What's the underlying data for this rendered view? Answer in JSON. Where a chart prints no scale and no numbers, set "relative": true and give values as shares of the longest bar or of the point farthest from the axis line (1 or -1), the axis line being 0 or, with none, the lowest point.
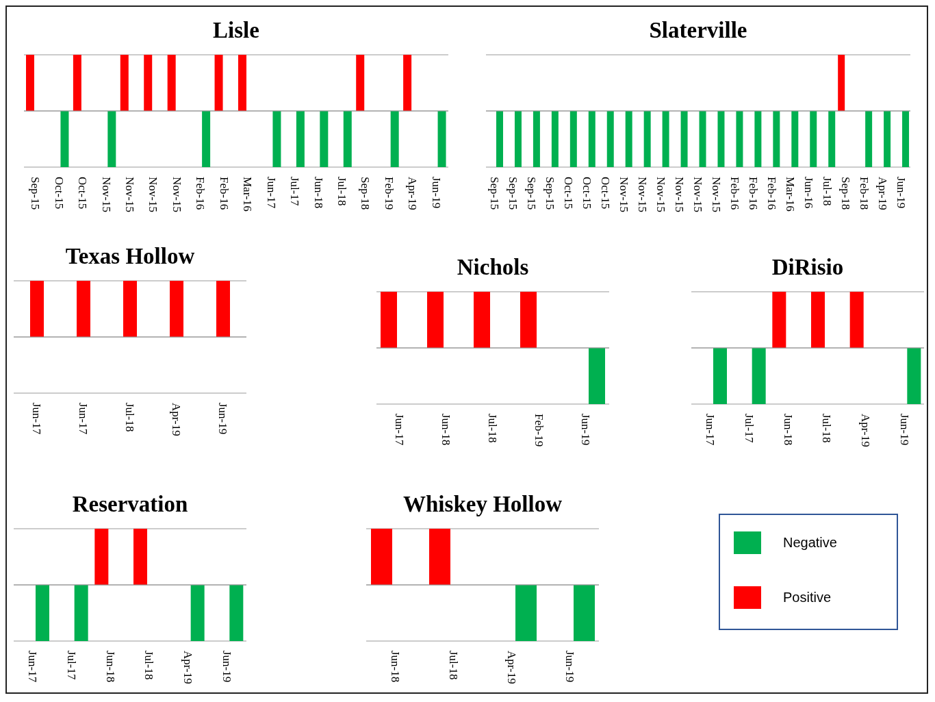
{
  "chart_data": [
    {
      "type": "bar",
      "title": "Lisle",
      "relative": true,
      "grid": "y",
      "categories": [
        "Sep-15",
        "Oct-15",
        "Oct-15",
        "Nov-15",
        "Nov-15",
        "Nov-15",
        "Nov-15",
        "Feb-16",
        "Feb-16",
        "Mar-16",
        "Jun-17",
        "Jul-17",
        "Jun-18",
        "Jul-18",
        "Sep-18",
        "Feb-19",
        "Apr-19",
        "Jun-19"
      ],
      "series": [
        {
          "color": "#ff0000",
          "values": [
            1,
            null,
            1,
            null,
            1,
            1,
            1,
            null,
            1,
            1,
            null,
            null,
            null,
            null,
            1,
            null,
            1,
            null
          ]
        },
        {
          "color": "#00b050",
          "values": [
            null,
            -1,
            null,
            -1,
            null,
            null,
            null,
            -1,
            null,
            null,
            -1,
            -1,
            -1,
            -1,
            null,
            -1,
            null,
            -1
          ]
        }
      ]
    },
    {
      "type": "bar",
      "title": "Slaterville",
      "relative": true,
      "grid": "y",
      "categories": [
        "Sep-15",
        "Sep-15",
        "Sep-15",
        "Sep-15",
        "Oct-15",
        "Oct-15",
        "Oct-15",
        "Nov-15",
        "Nov-15",
        "Nov-15",
        "Nov-15",
        "Nov-15",
        "Nov-15",
        "Feb-16",
        "Feb-16",
        "Feb-16",
        "Mar-16",
        "Jun-16",
        "Jul-18",
        "Sep-18",
        "Feb-18",
        "Apr-19",
        "Jun-19"
      ],
      "series": [
        {
          "color": "#ff0000",
          "values": [
            null,
            null,
            null,
            null,
            null,
            null,
            null,
            null,
            null,
            null,
            null,
            null,
            null,
            null,
            null,
            null,
            null,
            null,
            null,
            1,
            null,
            null,
            null
          ]
        },
        {
          "color": "#00b050",
          "values": [
            -1,
            -1,
            -1,
            -1,
            -1,
            -1,
            -1,
            -1,
            -1,
            -1,
            -1,
            -1,
            -1,
            -1,
            -1,
            -1,
            -1,
            -1,
            -1,
            null,
            -1,
            -1,
            -1
          ]
        }
      ]
    },
    {
      "type": "bar",
      "title": "Texas Hollow",
      "relative": true,
      "grid": "y",
      "categories": [
        "Jun-17",
        "Jun-17",
        "Jul-18",
        "Apr-19",
        "Jun-19"
      ],
      "series": [
        {
          "color": "#ff0000",
          "values": [
            1,
            1,
            1,
            1,
            1
          ]
        }
      ]
    },
    {
      "type": "bar",
      "title": "Nichols",
      "relative": true,
      "grid": "y",
      "categories": [
        "Jun-17",
        "Jun-18",
        "Jul-18",
        "Feb-19",
        "Jun-19"
      ],
      "series": [
        {
          "color": "#ff0000",
          "values": [
            1,
            1,
            1,
            1,
            null
          ]
        },
        {
          "color": "#00b050",
          "values": [
            null,
            null,
            null,
            null,
            -1
          ]
        }
      ]
    },
    {
      "type": "bar",
      "title": "DiRisio",
      "relative": true,
      "grid": "y",
      "categories": [
        "Jun-17",
        "Jul-17",
        "Jun-18",
        "Jul-18",
        "Apr-19",
        "Jun-19"
      ],
      "series": [
        {
          "color": "#ff0000",
          "values": [
            null,
            null,
            1,
            1,
            1,
            null
          ]
        },
        {
          "color": "#00b050",
          "values": [
            -1,
            -1,
            null,
            null,
            null,
            -1
          ]
        }
      ]
    },
    {
      "type": "bar",
      "title": "Reservation",
      "relative": true,
      "grid": "y",
      "categories": [
        "Jun-17",
        "Jul-17",
        "Jun-18",
        "Jul-18",
        "Apr-19",
        "Jun-19"
      ],
      "series": [
        {
          "color": "#ff0000",
          "values": [
            null,
            null,
            1,
            1,
            null,
            null
          ]
        },
        {
          "color": "#00b050",
          "values": [
            -1,
            -1,
            null,
            null,
            -1,
            -1
          ]
        }
      ]
    },
    {
      "type": "bar",
      "title": "Whiskey Hollow",
      "relative": true,
      "grid": "y",
      "legend": "right",
      "categories": [
        "Jun-18",
        "Jul-18",
        "Apr-19",
        "Jun-19"
      ],
      "series": [
        {
          "name": "Positive",
          "color": "#ff0000",
          "values": [
            1,
            1,
            null,
            null
          ]
        },
        {
          "name": "Negative",
          "color": "#00b050",
          "values": [
            null,
            null,
            -1,
            -1
          ]
        }
      ]
    }
  ]
}
